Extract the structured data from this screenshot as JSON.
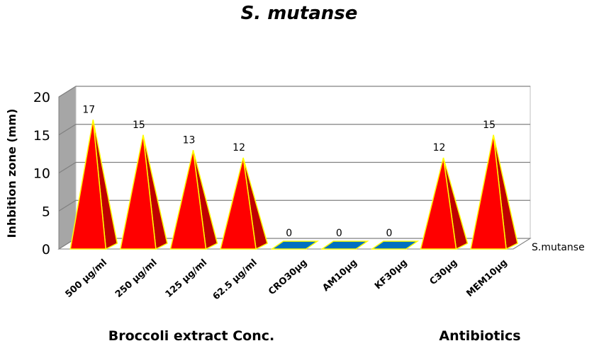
{
  "chart_data": {
    "type": "bar",
    "bar_shape": "3d-pyramid",
    "title": "S. mutanse",
    "ylabel": "Inhbition zone  (mm)",
    "xlabel": "",
    "ylim": [
      0,
      20
    ],
    "yticks": [
      0,
      5,
      10,
      15,
      20
    ],
    "grid": true,
    "categories": [
      "500 µg/ml",
      "250 µg/ml",
      "125 µg/ml",
      "62.5 µg/ml",
      "CRO30µg",
      "AM10µg",
      "KF30µg",
      "C30µg",
      "MEM10µg"
    ],
    "series": [
      {
        "name": "S.mutanse",
        "values": [
          17,
          15,
          13,
          12,
          0,
          0,
          0,
          12,
          15
        ]
      }
    ],
    "groups": [
      {
        "label": "Broccoli extract Conc.",
        "categories": [
          0,
          1,
          2,
          3
        ]
      },
      {
        "label": "Antibiotics",
        "categories": [
          4,
          5,
          6,
          7,
          8
        ]
      }
    ],
    "colors": {
      "pyramid_front": "#ff0000",
      "pyramid_side": "#c00000",
      "pyramid_edge": "#ffff00",
      "zero_marker": "#0070c0",
      "wall": "#a6a6a6",
      "grid": "#808080"
    }
  }
}
